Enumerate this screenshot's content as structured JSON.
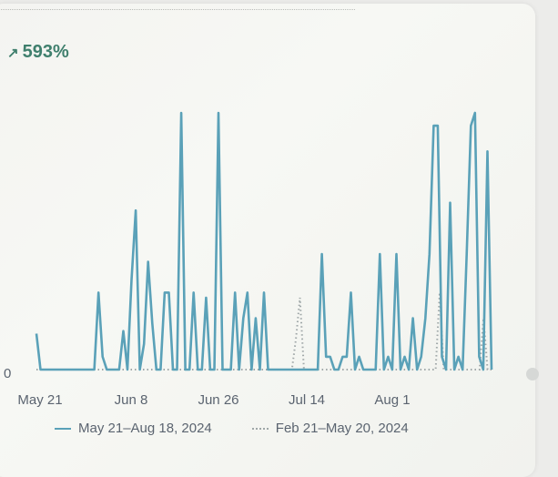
{
  "header": {
    "growth_icon": "arrow-up-right-icon",
    "growth_value": "593%"
  },
  "legend": {
    "current": "May 21–Aug 18, 2024",
    "previous": "Feb 21–May 20, 2024"
  },
  "colors": {
    "current": "#5aa1b8",
    "previous": "#9fa7a8",
    "accent": "#3f7f6d"
  },
  "chart_data": {
    "type": "line",
    "title": "",
    "xlabel": "",
    "ylabel": "",
    "x_ticks": [
      "May 21",
      "Jun 8",
      "Jun 26",
      "Jul 14",
      "Aug 1"
    ],
    "y_ticks": [
      "0"
    ],
    "ylim": [
      0,
      100
    ],
    "grid": false,
    "legend_position": "bottom",
    "series": [
      {
        "name": "May 21–Aug 18, 2024",
        "style": "solid",
        "values": [
          14,
          0,
          0,
          0,
          0,
          0,
          0,
          0,
          0,
          0,
          0,
          0,
          0,
          0,
          0,
          30,
          5,
          0,
          0,
          0,
          0,
          15,
          0,
          35,
          62,
          0,
          10,
          42,
          18,
          0,
          0,
          30,
          30,
          0,
          0,
          100,
          0,
          0,
          30,
          0,
          0,
          28,
          0,
          0,
          100,
          0,
          0,
          0,
          30,
          0,
          20,
          30,
          0,
          20,
          0,
          30,
          0,
          0,
          0,
          0,
          0,
          0,
          0,
          0,
          0,
          0,
          0,
          0,
          0,
          45,
          5,
          5,
          0,
          0,
          5,
          5,
          30,
          0,
          5,
          0,
          0,
          0,
          0,
          45,
          0,
          5,
          0,
          45,
          0,
          5,
          0,
          20,
          0,
          5,
          20,
          45,
          95,
          95,
          5,
          0,
          65,
          0,
          5,
          0,
          45,
          95,
          100,
          5,
          0,
          85,
          0
        ]
      },
      {
        "name": "Feb 21–May 20, 2024",
        "style": "dotted",
        "values": [
          0,
          0,
          0,
          0,
          0,
          0,
          0,
          0,
          0,
          0,
          0,
          0,
          0,
          0,
          0,
          0,
          0,
          0,
          0,
          0,
          0,
          0,
          0,
          0,
          0,
          0,
          0,
          0,
          0,
          0,
          0,
          0,
          0,
          0,
          0,
          0,
          0,
          0,
          0,
          0,
          0,
          0,
          0,
          0,
          0,
          0,
          0,
          0,
          0,
          0,
          0,
          0,
          0,
          0,
          0,
          0,
          0,
          0,
          0,
          0,
          0,
          0,
          0,
          0,
          0,
          12,
          28,
          0,
          0,
          0,
          0,
          0,
          0,
          0,
          0,
          0,
          0,
          0,
          0,
          0,
          0,
          0,
          0,
          0,
          0,
          0,
          0,
          0,
          0,
          0,
          0,
          0,
          0,
          0,
          0,
          0,
          0,
          0,
          0,
          0,
          0,
          30,
          0,
          0,
          0,
          0,
          0,
          0,
          0,
          0,
          0,
          0,
          20,
          0,
          0
        ]
      }
    ]
  }
}
